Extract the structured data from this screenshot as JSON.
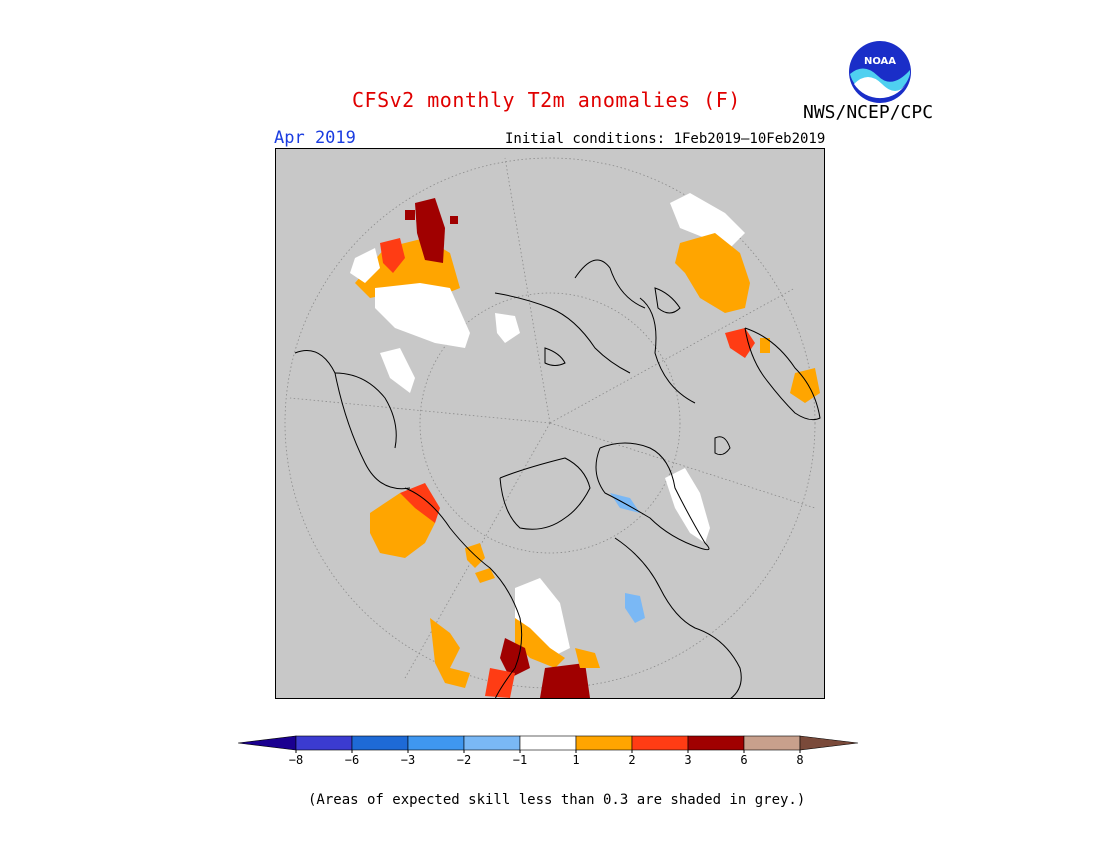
{
  "header": {
    "title": "CFSv2 monthly T2m anomalies (F)",
    "agency": "NWS/NCEP/CPC",
    "logo_text": "NOAA",
    "month": "Apr 2019",
    "initial_conditions": "Initial conditions: 1Feb2019–10Feb2019"
  },
  "colors": {
    "title": "#e00000",
    "month": "#1a3ce0",
    "no_skill_grey": "#c8c8c8",
    "map_border": "#000000"
  },
  "legend": {
    "tick_labels": [
      "−8",
      "−6",
      "−3",
      "−2",
      "−1",
      "1",
      "2",
      "3",
      "6",
      "8"
    ],
    "bins": [
      {
        "range": "< -8",
        "color": "#1a0090"
      },
      {
        "range": "-8 to -6",
        "color": "#3b3bd0"
      },
      {
        "range": "-6 to -3",
        "color": "#1e6ad6"
      },
      {
        "range": "-3 to -2",
        "color": "#3f97f0"
      },
      {
        "range": "-2 to -1",
        "color": "#7ab8f5"
      },
      {
        "range": "-1 to 1",
        "color": "#ffffff"
      },
      {
        "range": "1 to 2",
        "color": "#ffa500"
      },
      {
        "range": "2 to 3",
        "color": "#ff3c14"
      },
      {
        "range": "3 to 6",
        "color": "#a00000"
      },
      {
        "range": "6 to 8",
        "color": "#c8a08c"
      },
      {
        "range": "> 8",
        "color": "#7a4a3a"
      }
    ]
  },
  "footnote": "(Areas of expected skill less than 0.3 are shaded in grey.)"
}
